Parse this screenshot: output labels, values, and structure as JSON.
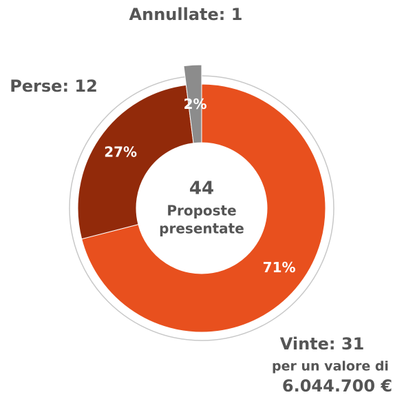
{
  "chart_data": {
    "type": "donut",
    "categories": [
      "Vinte: 31",
      "Perse: 12",
      "Annullate: 1"
    ],
    "values": [
      71,
      27,
      2
    ],
    "value_labels": [
      "71%",
      "27%",
      "2%"
    ],
    "colors": [
      "#e8501e",
      "#922a0a",
      "#8c8c8c"
    ],
    "center_value": "44",
    "center_label": [
      "Proposte",
      "presentate"
    ],
    "note": [
      "per un valore di",
      "6.044.700 €"
    ]
  }
}
